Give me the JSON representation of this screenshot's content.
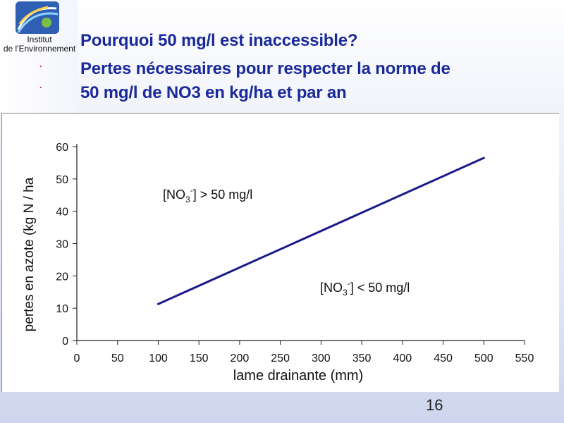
{
  "header": {
    "logo_line1": "Institut",
    "logo_line2": "de l'Environnement",
    "title_lines": [
      "Pourquoi 50 mg/l est inaccessible?",
      "Pertes nécessaires pour respecter la norme de",
      "50 mg/l de NO3 en kg/ha et par an"
    ],
    "bullets": [
      ".",
      "."
    ]
  },
  "chart_data": {
    "type": "line",
    "title": "",
    "xlabel": "lame drainante (mm)",
    "ylabel": "pertes en azote (kg N / ha",
    "xlim": [
      0,
      550
    ],
    "ylim": [
      0,
      60
    ],
    "xticks": [
      0,
      50,
      100,
      150,
      200,
      250,
      300,
      350,
      400,
      450,
      500,
      550
    ],
    "yticks": [
      0,
      10,
      20,
      30,
      40,
      50,
      60
    ],
    "grid": false,
    "series": [
      {
        "color": "#1a1a8c",
        "x": [
          100,
          500
        ],
        "y": [
          11.3,
          56.5
        ]
      }
    ],
    "annotations": [
      {
        "text": "[NO3-] > 50 mg/l",
        "ion": "[NO",
        "sub": "3",
        "sup": "-",
        "rest": "] > 50 mg/l"
      },
      {
        "text": "[NO3-] < 50 mg/l",
        "ion": "[NO",
        "sub": "3",
        "sup": "-",
        "rest": "] < 50 mg/l"
      }
    ]
  },
  "footer": {
    "page_number": "16"
  }
}
